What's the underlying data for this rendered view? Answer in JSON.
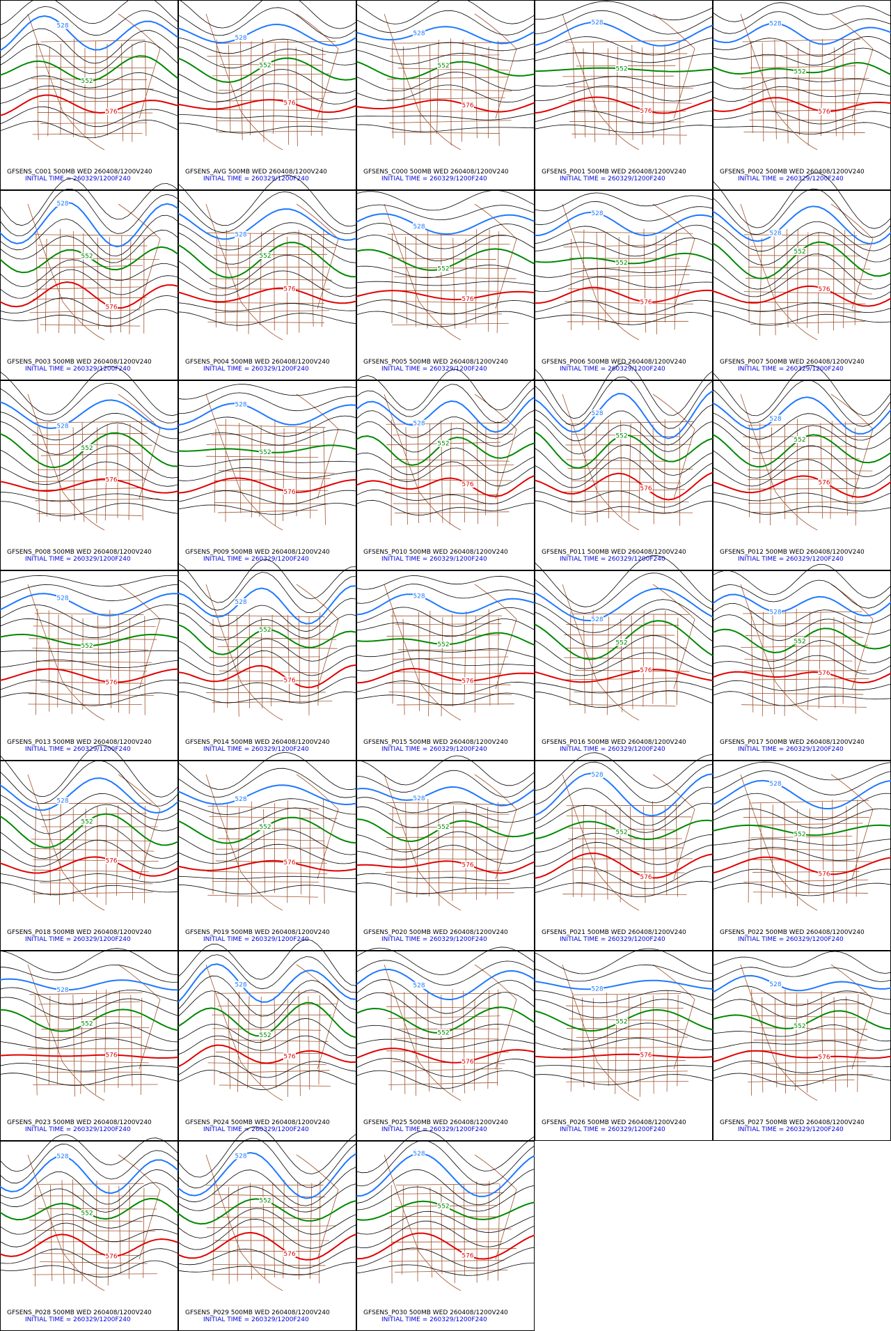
{
  "panels": [
    {
      "title": "GFSENS_C001 500MB WED 260408/1200V240",
      "init": "INITIAL TIME = 260329/1200F240",
      "contours": [
        "528",
        "552",
        "576"
      ]
    },
    {
      "title": "GFSENS_AVG 500MB WED 260408/1200V240",
      "init": "INITIAL TIME = 260329/1200F240",
      "contours": [
        "528",
        "552",
        "576"
      ]
    },
    {
      "title": "GFSENS_C000 500MB WED 260408/1200V240",
      "init": "INITIAL TIME = 260329/1200F240",
      "contours": [
        "528",
        "552",
        "576"
      ]
    },
    {
      "title": "GFSENS_P001 500MB WED 260408/1200V240",
      "init": "INITIAL TIME = 260329/1200F240",
      "contours": [
        "528",
        "552",
        "576"
      ]
    },
    {
      "title": "GFSENS_P002 500MB WED 260408/1200V240",
      "init": "INITIAL TIME = 260329/1200F240",
      "contours": [
        "528",
        "552",
        "576"
      ]
    },
    {
      "title": "GFSENS_P003 500MB WED 260408/1200V240",
      "init": "INITIAL TIME = 260329/1200F240",
      "contours": [
        "528",
        "552",
        "576"
      ]
    },
    {
      "title": "GFSENS_P004 500MB WED 260408/1200V240",
      "init": "INITIAL TIME = 260329/1200F240",
      "contours": [
        "528",
        "552",
        "576"
      ]
    },
    {
      "title": "GFSENS_P005 500MB WED 260408/1200V240",
      "init": "INITIAL TIME = 260329/1200F240",
      "contours": [
        "528",
        "552",
        "576"
      ]
    },
    {
      "title": "GFSENS_P006 500MB WED 260408/1200V240",
      "init": "INITIAL TIME = 260329/1200F240",
      "contours": [
        "528",
        "552",
        "576"
      ]
    },
    {
      "title": "GFSENS_P007 500MB WED 260408/1200V240",
      "init": "INITIAL TIME = 260329/1200F240",
      "contours": [
        "528",
        "552",
        "576"
      ]
    },
    {
      "title": "GFSENS_P008 500MB WED 260408/1200V240",
      "init": "INITIAL TIME = 260329/1200F240",
      "contours": [
        "528",
        "552",
        "576"
      ]
    },
    {
      "title": "GFSENS_P009 500MB WED 260408/1200V240",
      "init": "INITIAL TIME = 260329/1200F240",
      "contours": [
        "528",
        "552",
        "576"
      ]
    },
    {
      "title": "GFSENS_P010 500MB WED 260408/1200V240",
      "init": "INITIAL TIME = 260329/1200F240",
      "contours": [
        "528",
        "552",
        "576"
      ]
    },
    {
      "title": "GFSENS_P011 500MB WED 260408/1200V240",
      "init": "INITIAL TIME = 260329/1200F240",
      "contours": [
        "528",
        "552",
        "576"
      ]
    },
    {
      "title": "GFSENS_P012 500MB WED 260408/1200V240",
      "init": "INITIAL TIME = 260329/1200F240",
      "contours": [
        "528",
        "552",
        "576"
      ]
    },
    {
      "title": "GFSENS_P013 500MB WED 260408/1200V240",
      "init": "INITIAL TIME = 260329/1200F240",
      "contours": [
        "528",
        "552",
        "576"
      ]
    },
    {
      "title": "GFSENS_P014 500MB WED 260408/1200V240",
      "init": "INITIAL TIME = 260329/1200F240",
      "contours": [
        "528",
        "552",
        "576"
      ]
    },
    {
      "title": "GFSENS_P015 500MB WED 260408/1200V240",
      "init": "INITIAL TIME = 260329/1200F240",
      "contours": [
        "528",
        "552",
        "576"
      ]
    },
    {
      "title": "GFSENS_P016 500MB WED 260408/1200V240",
      "init": "INITIAL TIME = 260329/1200F240",
      "contours": [
        "528",
        "552",
        "576"
      ]
    },
    {
      "title": "GFSENS_P017 500MB WED 260408/1200V240",
      "init": "INITIAL TIME = 260329/1200F240",
      "contours": [
        "528",
        "552",
        "576"
      ]
    },
    {
      "title": "GFSENS_P018 500MB WED 260408/1200V240",
      "init": "INITIAL TIME = 260329/1200F240",
      "contours": [
        "528",
        "552",
        "576"
      ]
    },
    {
      "title": "GFSENS_P019 500MB WED 260408/1200V240",
      "init": "INITIAL TIME = 260329/1200F240",
      "contours": [
        "528",
        "552",
        "576"
      ]
    },
    {
      "title": "GFSENS_P020 500MB WED 260408/1200V240",
      "init": "INITIAL TIME = 260329/1200F240",
      "contours": [
        "528",
        "552",
        "576"
      ]
    },
    {
      "title": "GFSENS_P021 500MB WED 260408/1200V240",
      "init": "INITIAL TIME = 260329/1200F240",
      "contours": [
        "528",
        "552",
        "576"
      ]
    },
    {
      "title": "GFSENS_P022 500MB WED 260408/1200V240",
      "init": "INITIAL TIME = 260329/1200F240",
      "contours": [
        "528",
        "552",
        "576"
      ]
    },
    {
      "title": "GFSENS_P023 500MB WED 260408/1200V240",
      "init": "INITIAL TIME = 260329/1200F240",
      "contours": [
        "528",
        "552",
        "576"
      ]
    },
    {
      "title": "GFSENS_P024 500MB WED 260408/1200V240",
      "init": "INITIAL TIME = 260329/1200F240",
      "contours": [
        "528",
        "552",
        "576"
      ]
    },
    {
      "title": "GFSENS_P025 500MB WED 260408/1200V240",
      "init": "INITIAL TIME = 260329/1200F240",
      "contours": [
        "528",
        "552",
        "576"
      ]
    },
    {
      "title": "GFSENS_P026 500MB WED 260408/1200V240",
      "init": "INITIAL TIME = 260329/1200F240",
      "contours": [
        "528",
        "552",
        "576"
      ]
    },
    {
      "title": "GFSENS_P027 500MB WED 260408/1200V240",
      "init": "INITIAL TIME = 260329/1200F240",
      "contours": [
        "528",
        "552",
        "576"
      ]
    },
    {
      "title": "GFSENS_P028 500MB WED 260408/1200V240",
      "init": "INITIAL TIME = 260329/1200F240",
      "contours": [
        "528",
        "552",
        "576"
      ]
    },
    {
      "title": "GFSENS_P029 500MB WED 260408/1200V240",
      "init": "INITIAL TIME = 260329/1200F240",
      "contours": [
        "528",
        "552",
        "576"
      ]
    },
    {
      "title": "GFSENS_P030 500MB WED 260408/1200V240",
      "init": "INITIAL TIME = 260329/1200F240",
      "contours": [
        "528",
        "552",
        "576"
      ]
    }
  ]
}
